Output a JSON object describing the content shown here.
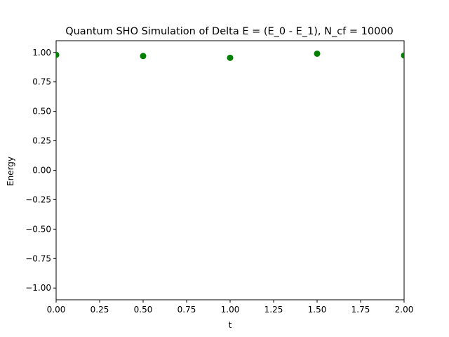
{
  "chart_data": {
    "type": "scatter",
    "title": "Quantum SHO Simulation of Delta E = (E_0 - E_1), N_cf = 10000",
    "xlabel": "t",
    "ylabel": "Energy",
    "xlim": [
      0,
      2
    ],
    "ylim": [
      -1.1,
      1.1
    ],
    "xticks": [
      0,
      0.25,
      0.5,
      0.75,
      1.0,
      1.25,
      1.5,
      1.75,
      2.0
    ],
    "xtick_labels": [
      "0.00",
      "0.25",
      "0.50",
      "0.75",
      "1.00",
      "1.25",
      "1.50",
      "1.75",
      "2.00"
    ],
    "yticks": [
      -1.0,
      -0.75,
      -0.5,
      -0.25,
      0.0,
      0.25,
      0.5,
      0.75,
      1.0
    ],
    "ytick_labels": [
      "−1.00",
      "−0.75",
      "−0.50",
      "−0.25",
      "0.00",
      "0.25",
      "0.50",
      "0.75",
      "1.00"
    ],
    "grid": false,
    "series": [
      {
        "color": "#008000",
        "x": [
          0.0,
          0.5,
          1.0,
          1.5,
          2.0
        ],
        "y": [
          0.98,
          0.97,
          0.955,
          0.99,
          0.975
        ]
      }
    ]
  }
}
